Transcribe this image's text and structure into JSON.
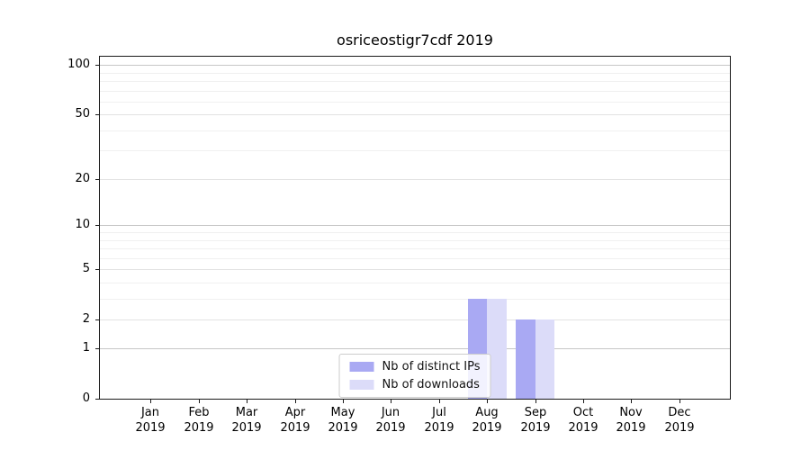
{
  "title": "osriceostigr7cdf 2019",
  "chart_data": {
    "type": "bar",
    "title": "osriceostigr7cdf 2019",
    "xlabel": "",
    "ylabel": "",
    "yscale": "log1p",
    "ylim": [
      0,
      113
    ],
    "yticks": [
      0,
      1,
      2,
      5,
      10,
      20,
      50,
      100
    ],
    "minor_yticks": [
      3,
      4,
      6,
      7,
      8,
      9,
      30,
      40,
      60,
      70,
      80,
      90
    ],
    "grid": "horizontal",
    "legend_position": "lower center",
    "categories": [
      "Jan 2019",
      "Feb 2019",
      "Mar 2019",
      "Apr 2019",
      "May 2019",
      "Jun 2019",
      "Jul 2019",
      "Aug 2019",
      "Sep 2019",
      "Oct 2019",
      "Nov 2019",
      "Dec 2019"
    ],
    "month_labels": [
      "Jan",
      "Feb",
      "Mar",
      "Apr",
      "May",
      "Jun",
      "Jul",
      "Aug",
      "Sep",
      "Oct",
      "Nov",
      "Dec"
    ],
    "year_label": "2019",
    "series": [
      {
        "name": "Nb of distinct IPs",
        "color": "#a9a9f3",
        "values": [
          0,
          0,
          0,
          0,
          0,
          0,
          0,
          3,
          2,
          0,
          0,
          0
        ]
      },
      {
        "name": "Nb of downloads",
        "color": "#dcdcf9",
        "values": [
          0,
          0,
          0,
          0,
          0,
          0,
          0,
          3,
          2,
          0,
          0,
          0
        ]
      }
    ]
  },
  "colors": {
    "background": "#ffffff",
    "spine": "#1a1a1a",
    "grid_minor": "#f0f0f0",
    "grid_major": "#e2e2e2",
    "grid_decade": "#c6c6c6"
  }
}
